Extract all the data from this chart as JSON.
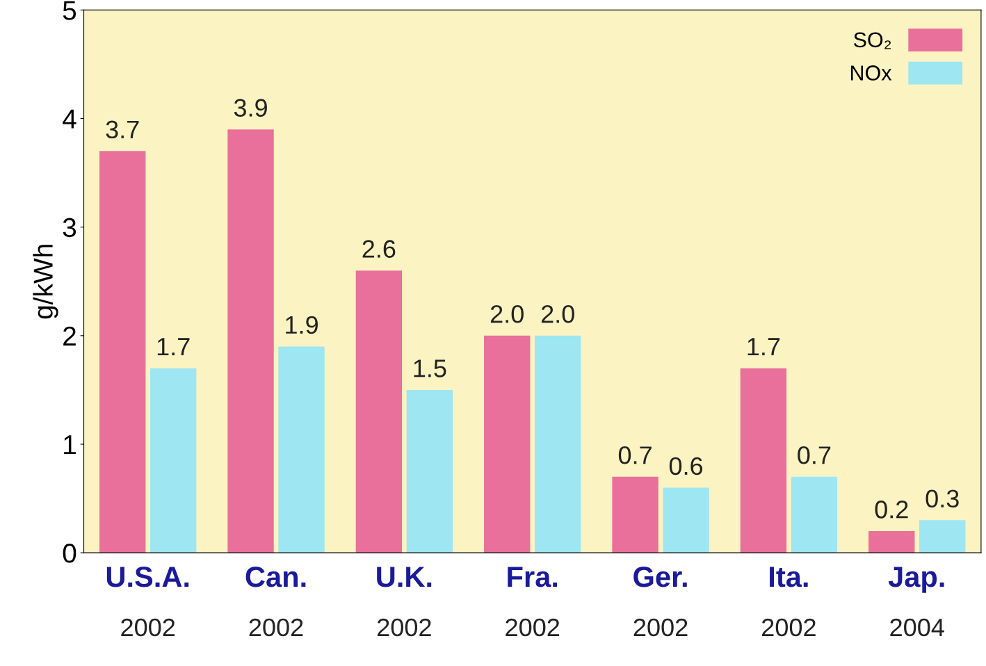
{
  "chart_data": {
    "type": "bar",
    "ylabel": "g/kWh",
    "categories": [
      "U.S.A.\n2002",
      "Can.\n2002",
      "U.K.\n2002",
      "Fra.\n2002",
      "Ger.\n2002",
      "Ita.\n2002",
      "Jap.\n2004"
    ],
    "series": [
      {
        "name": "SO₂",
        "color": "#e8709a",
        "values": [
          3.7,
          3.9,
          2.6,
          2.0,
          0.7,
          1.7,
          0.2
        ],
        "value_labels": [
          "3.7",
          "3.9",
          "2.6",
          "2.0",
          "0.7",
          "1.7",
          "0.2"
        ]
      },
      {
        "name": "NOx",
        "color": "#9ee6f2",
        "values": [
          1.7,
          1.9,
          1.5,
          2.0,
          0.6,
          0.7,
          0.3
        ],
        "value_labels": [
          "1.7",
          "1.9",
          "1.5",
          "2.0",
          "0.6",
          "0.7",
          "0.3"
        ]
      }
    ],
    "ylim": [
      0,
      5
    ],
    "yticks": [
      0,
      1,
      2,
      3,
      4,
      5
    ],
    "grid": false,
    "legend": "top right"
  }
}
